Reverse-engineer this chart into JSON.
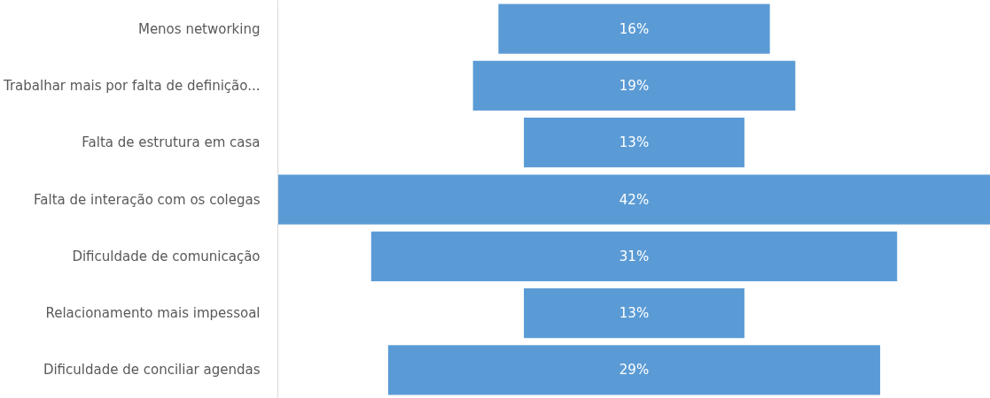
{
  "chart_data": {
    "type": "other",
    "categories": [
      "Menos networking",
      "Trabalhar mais por falta de definição...",
      "Falta de estrutura em casa",
      "Falta de interação com os colegas",
      "Dificuldade de comunicação",
      "Relacionamento mais impessoal",
      "Dificuldade de conciliar agendas"
    ],
    "values": [
      16,
      19,
      13,
      42,
      31,
      13,
      29
    ],
    "value_labels": [
      "16%",
      "19%",
      "13%",
      "42%",
      "31%",
      "13%",
      "29%"
    ],
    "color": "#5b9bd5"
  }
}
